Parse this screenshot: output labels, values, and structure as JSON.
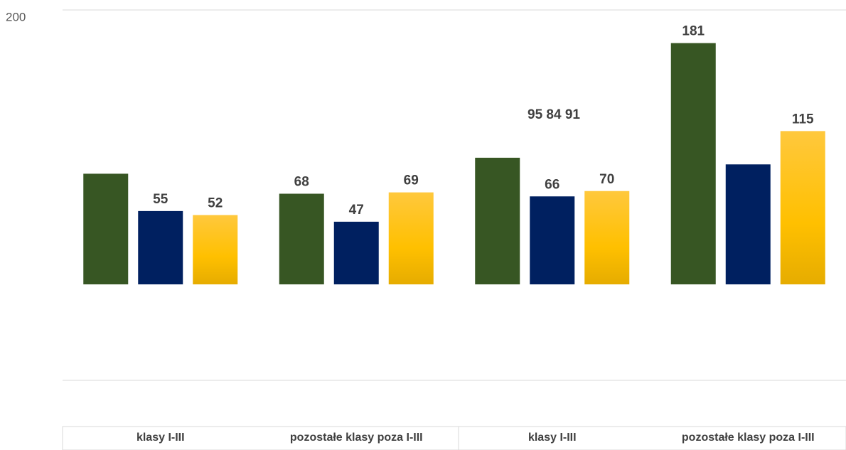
{
  "chart_data": {
    "type": "bar",
    "categories": [
      "klasy I-III",
      "pozostałe klasy poza I-III",
      "klasy I-III",
      "pozostałe klasy poza I-III"
    ],
    "series": [
      {
        "color": "#375623",
        "values": [
          83,
          68,
          95,
          181
        ],
        "value_labels": [
          null,
          "68",
          null,
          "181"
        ]
      },
      {
        "color": "#002060",
        "values": [
          55,
          47,
          66,
          90
        ],
        "value_labels": [
          "55",
          "47",
          "66",
          null
        ]
      },
      {
        "color": "#ffc000",
        "values": [
          52,
          69,
          70,
          115
        ],
        "value_labels": [
          "52",
          "69",
          "70",
          "115"
        ]
      }
    ],
    "annotation": "95 84 91",
    "ylim": [
      0,
      200
    ],
    "yticks": [
      200
    ],
    "grid": true
  }
}
